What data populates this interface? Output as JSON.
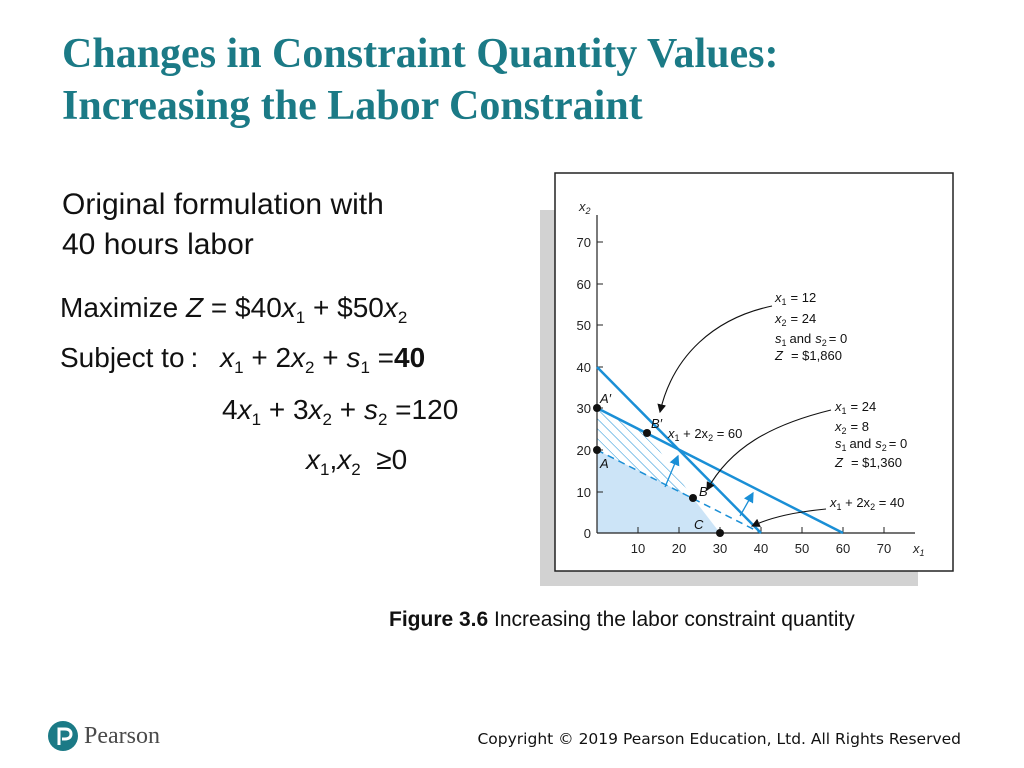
{
  "slide": {
    "title_lines": [
      "Changes in Constraint Quantity Values:",
      "Increasing the Labor Constraint"
    ],
    "intro_lines": [
      "Original formulation with",
      "40 hours labor"
    ]
  },
  "formulation": {
    "maximize_word": "Maximize",
    "objective": {
      "Z": "Z",
      "coef1": "$40",
      "coef2": "$50"
    },
    "subject_to": "Subject to",
    "constraint1_rhs": "40",
    "constraint2": {
      "c1": "4",
      "c2": "3",
      "rhs": "120"
    },
    "nonnegativity_rhs": "0"
  },
  "figure": {
    "caption_label": "Figure 3.6",
    "caption_text": "Increasing the labor constraint quantity",
    "axes": {
      "x_label": "x",
      "x_sub": "1",
      "y_label": "x",
      "y_sub": "2",
      "x_ticks": [
        "10",
        "20",
        "30",
        "40",
        "50",
        "60",
        "70"
      ],
      "y_ticks": [
        "0",
        "10",
        "20",
        "30",
        "40",
        "50",
        "60",
        "70"
      ]
    },
    "points": {
      "A_prime": "A′",
      "B_prime": "B′",
      "A": "A",
      "B": "B",
      "C": "C"
    },
    "line_labels": {
      "new": {
        "prefix": "x",
        "s1": "1",
        "mid": " + 2x",
        "s2": "2",
        "rhs": " = 60"
      },
      "old": {
        "prefix": "x",
        "s1": "1",
        "mid": " + 2x",
        "s2": "2",
        "rhs": " = 40"
      }
    },
    "annotation_top": {
      "x1": "= 12",
      "x2": "= 24",
      "slack_and": "and",
      "slack_eq": "= 0",
      "z": "= $1,860"
    },
    "annotation_bottom": {
      "x1": "= 24",
      "x2": "= 8",
      "slack_and": "and",
      "slack_eq": "= 0",
      "z": "= $1,360"
    },
    "colors": {
      "feasible_fill": "#cce4f7",
      "line": "#1a8fd6",
      "hatch": "#1a8fd6"
    }
  },
  "footer": {
    "logo_text": "Pearson",
    "copyright": "Copyright © 2019 Pearson Education, Ltd. All Rights Reserved"
  }
}
